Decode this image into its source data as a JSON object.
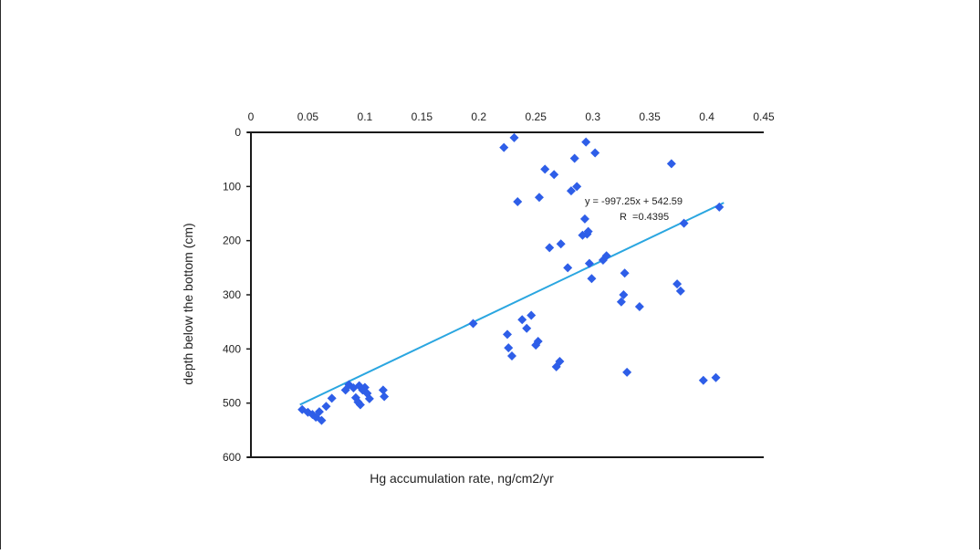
{
  "chart_data": {
    "type": "scatter",
    "xlabel": "Hg accumulation rate, ng/cm2/yr",
    "ylabel": "depth below the bottom (cm)",
    "xlim": [
      0,
      0.45
    ],
    "ylim": [
      0,
      600
    ],
    "y_inverted": true,
    "x_axis_position": "top",
    "grid": false,
    "x_ticks": [
      "0",
      "0.05",
      "0.1",
      "0.15",
      "0.2",
      "0.25",
      "0.3",
      "0.35",
      "0.4",
      "0.45"
    ],
    "y_ticks": [
      "0",
      "100",
      "200",
      "300",
      "400",
      "500",
      "600"
    ],
    "marker": "diamond",
    "point_color": "#2e5ee8",
    "trendline_color": "#2aa6e0",
    "points": [
      [
        0.045,
        512
      ],
      [
        0.05,
        517
      ],
      [
        0.054,
        521
      ],
      [
        0.057,
        526
      ],
      [
        0.06,
        516
      ],
      [
        0.062,
        532
      ],
      [
        0.066,
        506
      ],
      [
        0.071,
        491
      ],
      [
        0.083,
        476
      ],
      [
        0.086,
        466
      ],
      [
        0.09,
        472
      ],
      [
        0.092,
        490
      ],
      [
        0.094,
        498
      ],
      [
        0.095,
        468
      ],
      [
        0.096,
        503
      ],
      [
        0.098,
        476
      ],
      [
        0.1,
        471
      ],
      [
        0.102,
        482
      ],
      [
        0.104,
        492
      ],
      [
        0.116,
        476
      ],
      [
        0.117,
        488
      ],
      [
        0.195,
        353
      ],
      [
        0.222,
        28
      ],
      [
        0.225,
        373
      ],
      [
        0.226,
        398
      ],
      [
        0.229,
        413
      ],
      [
        0.231,
        10
      ],
      [
        0.234,
        128
      ],
      [
        0.238,
        346
      ],
      [
        0.242,
        362
      ],
      [
        0.246,
        338
      ],
      [
        0.25,
        393
      ],
      [
        0.252,
        386
      ],
      [
        0.253,
        120
      ],
      [
        0.258,
        68
      ],
      [
        0.262,
        213
      ],
      [
        0.266,
        78
      ],
      [
        0.268,
        433
      ],
      [
        0.271,
        423
      ],
      [
        0.272,
        206
      ],
      [
        0.278,
        250
      ],
      [
        0.281,
        108
      ],
      [
        0.284,
        48
      ],
      [
        0.286,
        100
      ],
      [
        0.291,
        190
      ],
      [
        0.293,
        160
      ],
      [
        0.294,
        18
      ],
      [
        0.295,
        188
      ],
      [
        0.296,
        183
      ],
      [
        0.297,
        242
      ],
      [
        0.299,
        270
      ],
      [
        0.302,
        38
      ],
      [
        0.309,
        236
      ],
      [
        0.312,
        228
      ],
      [
        0.325,
        313
      ],
      [
        0.327,
        300
      ],
      [
        0.328,
        260
      ],
      [
        0.33,
        443
      ],
      [
        0.341,
        322
      ],
      [
        0.369,
        58
      ],
      [
        0.374,
        280
      ],
      [
        0.377,
        293
      ],
      [
        0.38,
        168
      ],
      [
        0.397,
        458
      ],
      [
        0.408,
        453
      ],
      [
        0.411,
        138
      ]
    ],
    "trendline": {
      "x_start": 0.043,
      "y_start": 503,
      "x_end": 0.415,
      "y_end": 130
    },
    "annotations": {
      "equation": "y = -997.25x + 542.59",
      "r_value": "R  =0.4395"
    }
  }
}
